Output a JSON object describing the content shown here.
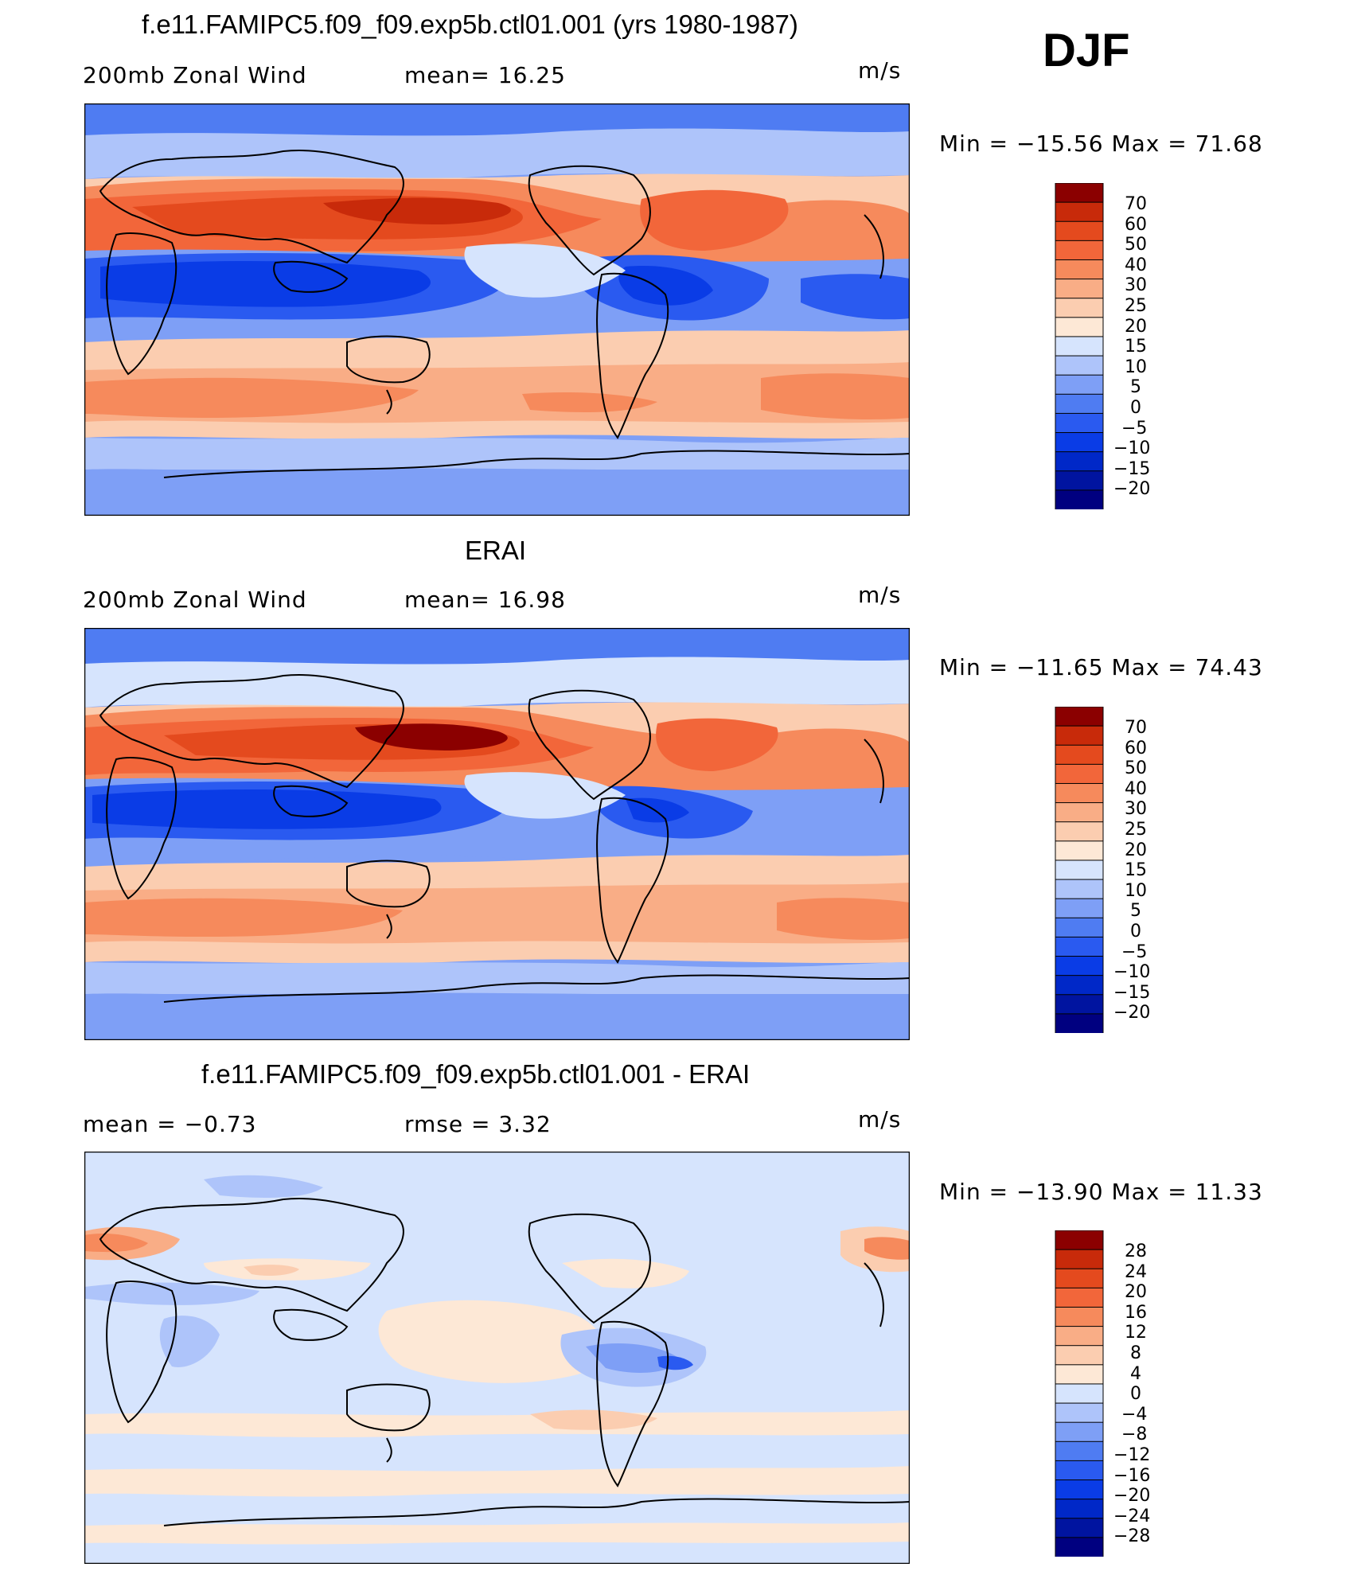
{
  "season": "DJF",
  "panels": [
    {
      "id": "model",
      "title": "f.e11.FAMIPC5.f09_f09.exp5b.ctl01.001 (yrs 1980-1987)",
      "left_label": "200mb Zonal Wind",
      "center_label": "mean=   16.25",
      "units": "m/s",
      "minmax": "Min  =  −15.56  Max  =    71.68",
      "colorbar_labels": [
        "70",
        "60",
        "50",
        "40",
        "30",
        "25",
        "20",
        "15",
        "10",
        "5",
        "0",
        "−5",
        "−10",
        "−15",
        "−20"
      ]
    },
    {
      "id": "obs",
      "title": "ERAI",
      "left_label": "200mb Zonal Wind",
      "center_label": "mean=   16.98",
      "units": "m/s",
      "minmax": "Min  =  −11.65  Max  =    74.43",
      "colorbar_labels": [
        "70",
        "60",
        "50",
        "40",
        "30",
        "25",
        "20",
        "15",
        "10",
        "5",
        "0",
        "−5",
        "−10",
        "−15",
        "−20"
      ]
    },
    {
      "id": "diff",
      "title": "f.e11.FAMIPC5.f09_f09.exp5b.ctl01.001 - ERAI",
      "left_label": "mean  =    −0.73",
      "center_label": "rmse  =     3.32",
      "units": "m/s",
      "minmax": "Min  =  −13.90  Max  =    11.33",
      "colorbar_labels": [
        "28",
        "24",
        "20",
        "16",
        "12",
        "8",
        "4",
        "0",
        "−4",
        "−8",
        "−12",
        "−16",
        "−20",
        "−24",
        "−28"
      ]
    }
  ],
  "palette": [
    "#000080",
    "#0014a0",
    "#0028c8",
    "#0a3ce6",
    "#2a5af0",
    "#4f7cf2",
    "#7e9ff6",
    "#aec4fa",
    "#d6e4fd",
    "#fde8d6",
    "#fbcdb0",
    "#f9ad86",
    "#f68a5c",
    "#f2663a",
    "#e44a1e",
    "#c82a0a",
    "#8b0000"
  ]
}
